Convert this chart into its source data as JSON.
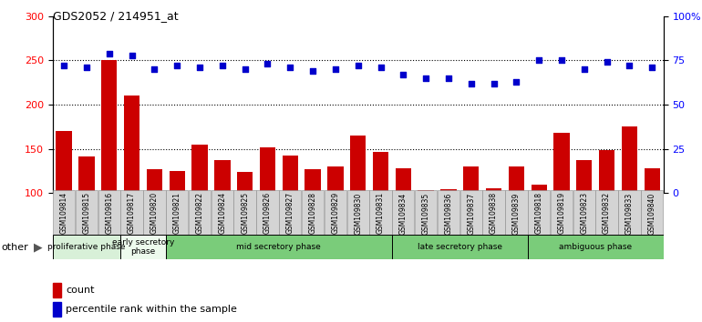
{
  "title": "GDS2052 / 214951_at",
  "samples": [
    "GSM109814",
    "GSM109815",
    "GSM109816",
    "GSM109817",
    "GSM109820",
    "GSM109821",
    "GSM109822",
    "GSM109824",
    "GSM109825",
    "GSM109826",
    "GSM109827",
    "GSM109828",
    "GSM109829",
    "GSM109830",
    "GSM109831",
    "GSM109834",
    "GSM109835",
    "GSM109836",
    "GSM109837",
    "GSM109838",
    "GSM109839",
    "GSM109818",
    "GSM109819",
    "GSM109823",
    "GSM109832",
    "GSM109833",
    "GSM109840"
  ],
  "counts": [
    170,
    141,
    250,
    210,
    127,
    125,
    155,
    137,
    124,
    152,
    143,
    127,
    130,
    165,
    147,
    128,
    103,
    105,
    130,
    106,
    130,
    110,
    168,
    137,
    149,
    175,
    128
  ],
  "percentiles": [
    72,
    71,
    79,
    78,
    70,
    72,
    71,
    72,
    70,
    73,
    71,
    69,
    70,
    72,
    71,
    67,
    65,
    65,
    62,
    62,
    63,
    75,
    75,
    70,
    74,
    72,
    71
  ],
  "ylim_left": [
    100,
    300
  ],
  "ylim_right": [
    0,
    100
  ],
  "yticks_left": [
    100,
    150,
    200,
    250,
    300
  ],
  "ytick_right_labels": [
    "0",
    "25",
    "50",
    "75",
    "100%"
  ],
  "bar_color": "#cc0000",
  "dot_color": "#0000cc",
  "bg_color": "#ffffff",
  "phase_data": [
    {
      "label": "proliferative phase",
      "start": 0,
      "end": 3,
      "color": "#d8f0d8"
    },
    {
      "label": "early secretory\nphase",
      "start": 3,
      "end": 5,
      "color": "#edfaed"
    },
    {
      "label": "mid secretory phase",
      "start": 5,
      "end": 15,
      "color": "#7acc7a"
    },
    {
      "label": "late secretory phase",
      "start": 15,
      "end": 21,
      "color": "#7acc7a"
    },
    {
      "label": "ambiguous phase",
      "start": 21,
      "end": 27,
      "color": "#7acc7a"
    }
  ],
  "other_label": "other"
}
